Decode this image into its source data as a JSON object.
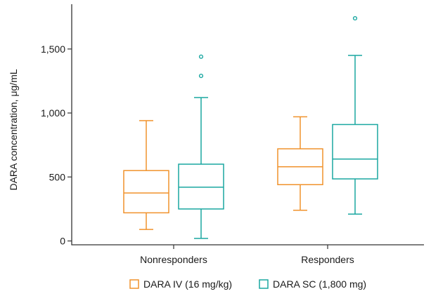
{
  "chart_data": {
    "type": "boxplot",
    "ylabel": "DARA concentration, μg/mL",
    "ylim": [
      -30,
      1850
    ],
    "yticks": [
      0,
      500,
      1000,
      1500
    ],
    "ytick_labels": [
      "0",
      "500",
      "1,000",
      "1,500"
    ],
    "categories": [
      "Nonresponders",
      "Responders"
    ],
    "legend_position": "bottom",
    "grid": false,
    "series": [
      {
        "name": "DARA IV (16 mg/kg)",
        "color": "#f0922c",
        "boxes": [
          {
            "min": 90,
            "q1": 220,
            "median": 375,
            "q3": 550,
            "max": 940,
            "outliers": []
          },
          {
            "min": 240,
            "q1": 440,
            "median": 580,
            "q3": 720,
            "max": 970,
            "outliers": []
          }
        ]
      },
      {
        "name": "DARA SC (1,800 mg)",
        "color": "#1aa7a1",
        "boxes": [
          {
            "min": 20,
            "q1": 250,
            "median": 420,
            "q3": 600,
            "max": 1120,
            "outliers": [
              1290,
              1440
            ]
          },
          {
            "min": 210,
            "q1": 485,
            "median": 640,
            "q3": 910,
            "max": 1450,
            "outliers": [
              1740
            ]
          }
        ]
      }
    ]
  }
}
